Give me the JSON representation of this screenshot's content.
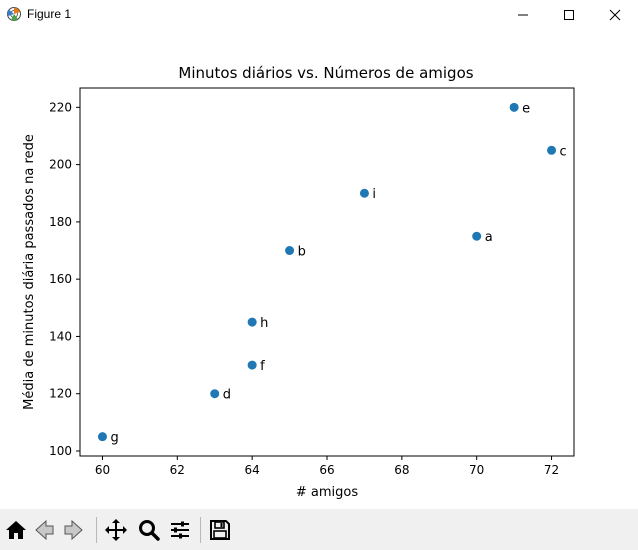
{
  "window": {
    "title": "Figure 1",
    "icons": [
      "app-icon",
      "minimize-icon",
      "maximize-icon",
      "close-icon"
    ]
  },
  "toolbar": {
    "buttons": [
      "home-icon",
      "back-icon",
      "forward-icon",
      "pan-icon",
      "zoom-icon",
      "configure-subplots-icon",
      "save-icon"
    ]
  },
  "chart_data": {
    "type": "scatter",
    "title": "Minutos diários vs. Números de amigos",
    "xlabel": "# amigos",
    "ylabel": "Média de minutos diária passados na rede",
    "xlim": [
      59.4,
      72.6
    ],
    "ylim": [
      98.25,
      226.75
    ],
    "xticks": [
      60,
      62,
      64,
      66,
      68,
      70,
      72
    ],
    "xtick_labels": [
      "60",
      "62",
      "64",
      "66",
      "68",
      "70",
      "72"
    ],
    "yticks": [
      100,
      120,
      140,
      160,
      180,
      200,
      220
    ],
    "ytick_labels": [
      "100",
      "120",
      "140",
      "160",
      "180",
      "200",
      "220"
    ],
    "grid": false,
    "color": "#1f77b4",
    "points": [
      {
        "x": 70,
        "y": 175,
        "label": "a"
      },
      {
        "x": 65,
        "y": 170,
        "label": "b"
      },
      {
        "x": 72,
        "y": 205,
        "label": "c"
      },
      {
        "x": 63,
        "y": 120,
        "label": "d"
      },
      {
        "x": 71,
        "y": 220,
        "label": "e"
      },
      {
        "x": 64,
        "y": 130,
        "label": "f"
      },
      {
        "x": 60,
        "y": 105,
        "label": "g"
      },
      {
        "x": 64,
        "y": 145,
        "label": "h"
      },
      {
        "x": 67,
        "y": 190,
        "label": "i"
      }
    ]
  }
}
